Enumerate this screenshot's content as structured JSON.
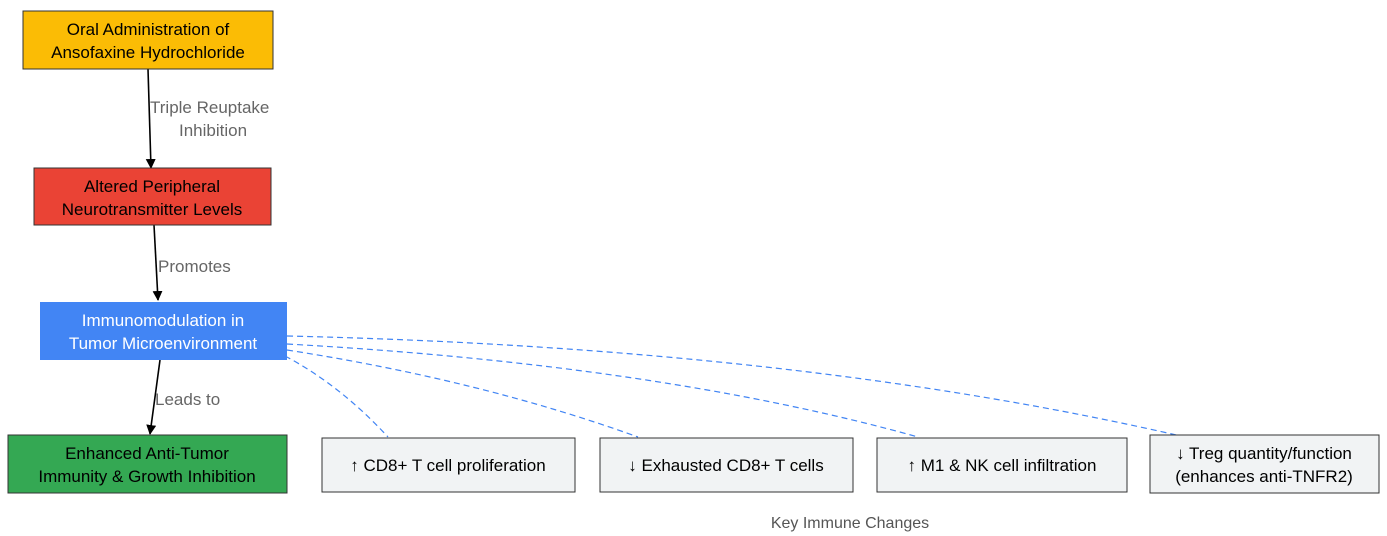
{
  "diagram": {
    "nodes": {
      "oral": {
        "line1": "Oral Administration of",
        "line2": "Ansofaxine Hydrochloride",
        "color": "#fbbc05"
      },
      "altered": {
        "line1": "Altered Peripheral",
        "line2": "Neurotransmitter Levels",
        "color": "#ea4335"
      },
      "immuno": {
        "line1": "Immunomodulation in",
        "line2": "Tumor Microenvironment",
        "color": "#4285f4"
      },
      "enhanced": {
        "line1": "Enhanced Anti-Tumor",
        "line2": "Immunity & Growth Inhibition",
        "color": "#34a853"
      }
    },
    "edges": {
      "triple": {
        "line1": "Triple Reuptake",
        "line2": "Inhibition"
      },
      "promotes": {
        "label": "Promotes"
      },
      "leads": {
        "label": "Leads to"
      }
    },
    "changes": {
      "cd8": {
        "label": "↑ CD8+ T cell proliferation"
      },
      "exhausted": {
        "label": "↓ Exhausted CD8+ T cells"
      },
      "m1nk": {
        "label": "↑ M1 & NK cell infiltration"
      },
      "treg": {
        "line1": "↓ Treg quantity/function",
        "line2": "(enhances anti-TNFR2)"
      }
    },
    "cluster_label": "Key Immune Changes",
    "colors": {
      "dashed_edge": "#4285f4",
      "change_fill": "#f1f3f4",
      "change_border": "#333333"
    }
  }
}
